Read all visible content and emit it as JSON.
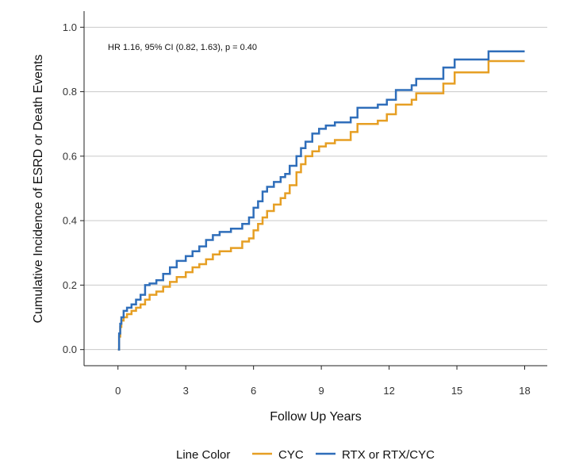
{
  "chart_data": {
    "type": "line",
    "step": true,
    "xlabel": "Follow Up Years",
    "ylabel": "Cumulative Incidence of ESRD or Death Events",
    "xlim": [
      -1.5,
      19
    ],
    "ylim": [
      -0.05,
      1.05
    ],
    "xticks": [
      0,
      3,
      6,
      9,
      12,
      15,
      18
    ],
    "yticks": [
      0.0,
      0.2,
      0.4,
      0.6,
      0.8,
      1.0
    ],
    "ytick_labels": [
      "0.0",
      "0.2",
      "0.4",
      "0.6",
      "0.8",
      "1.0"
    ],
    "grid": "horizontal",
    "annotation": "HR 1.16, 95% CI (0.82, 1.63), p = 0.40",
    "legend": {
      "title": "Line Color",
      "position": "bottom"
    },
    "series": [
      {
        "name": "CYC",
        "color": "#E69F24",
        "points": [
          [
            0,
            0
          ],
          [
            0.05,
            0.04
          ],
          [
            0.1,
            0.07
          ],
          [
            0.15,
            0.09
          ],
          [
            0.25,
            0.1
          ],
          [
            0.4,
            0.11
          ],
          [
            0.6,
            0.12
          ],
          [
            0.8,
            0.13
          ],
          [
            1.0,
            0.14
          ],
          [
            1.2,
            0.155
          ],
          [
            1.4,
            0.17
          ],
          [
            1.7,
            0.18
          ],
          [
            2.0,
            0.195
          ],
          [
            2.3,
            0.21
          ],
          [
            2.6,
            0.225
          ],
          [
            3.0,
            0.24
          ],
          [
            3.3,
            0.255
          ],
          [
            3.6,
            0.265
          ],
          [
            3.9,
            0.28
          ],
          [
            4.2,
            0.295
          ],
          [
            4.5,
            0.305
          ],
          [
            5.0,
            0.315
          ],
          [
            5.5,
            0.335
          ],
          [
            5.8,
            0.345
          ],
          [
            6.0,
            0.37
          ],
          [
            6.2,
            0.39
          ],
          [
            6.4,
            0.41
          ],
          [
            6.6,
            0.43
          ],
          [
            6.9,
            0.45
          ],
          [
            7.2,
            0.47
          ],
          [
            7.4,
            0.485
          ],
          [
            7.6,
            0.51
          ],
          [
            7.9,
            0.55
          ],
          [
            8.1,
            0.575
          ],
          [
            8.3,
            0.6
          ],
          [
            8.6,
            0.615
          ],
          [
            8.9,
            0.63
          ],
          [
            9.2,
            0.64
          ],
          [
            9.6,
            0.65
          ],
          [
            10.3,
            0.675
          ],
          [
            10.6,
            0.7
          ],
          [
            11.5,
            0.71
          ],
          [
            11.9,
            0.73
          ],
          [
            12.3,
            0.76
          ],
          [
            13.0,
            0.775
          ],
          [
            13.2,
            0.795
          ],
          [
            14.4,
            0.825
          ],
          [
            14.9,
            0.86
          ],
          [
            16.4,
            0.895
          ],
          [
            18.0,
            0.895
          ]
        ]
      },
      {
        "name": "RTX or RTX/CYC",
        "color": "#2F6EBA",
        "points": [
          [
            0,
            0
          ],
          [
            0.05,
            0.05
          ],
          [
            0.1,
            0.08
          ],
          [
            0.15,
            0.1
          ],
          [
            0.25,
            0.12
          ],
          [
            0.4,
            0.13
          ],
          [
            0.6,
            0.14
          ],
          [
            0.8,
            0.155
          ],
          [
            1.0,
            0.17
          ],
          [
            1.2,
            0.2
          ],
          [
            1.4,
            0.205
          ],
          [
            1.7,
            0.215
          ],
          [
            2.0,
            0.235
          ],
          [
            2.3,
            0.255
          ],
          [
            2.6,
            0.275
          ],
          [
            3.0,
            0.29
          ],
          [
            3.3,
            0.305
          ],
          [
            3.6,
            0.32
          ],
          [
            3.9,
            0.34
          ],
          [
            4.2,
            0.355
          ],
          [
            4.5,
            0.365
          ],
          [
            5.0,
            0.375
          ],
          [
            5.5,
            0.39
          ],
          [
            5.8,
            0.41
          ],
          [
            6.0,
            0.44
          ],
          [
            6.2,
            0.46
          ],
          [
            6.4,
            0.49
          ],
          [
            6.6,
            0.505
          ],
          [
            6.9,
            0.52
          ],
          [
            7.2,
            0.535
          ],
          [
            7.4,
            0.545
          ],
          [
            7.6,
            0.57
          ],
          [
            7.9,
            0.6
          ],
          [
            8.1,
            0.625
          ],
          [
            8.3,
            0.645
          ],
          [
            8.6,
            0.67
          ],
          [
            8.9,
            0.685
          ],
          [
            9.2,
            0.695
          ],
          [
            9.6,
            0.705
          ],
          [
            10.3,
            0.72
          ],
          [
            10.6,
            0.75
          ],
          [
            11.5,
            0.76
          ],
          [
            11.9,
            0.775
          ],
          [
            12.3,
            0.805
          ],
          [
            13.0,
            0.82
          ],
          [
            13.2,
            0.84
          ],
          [
            14.4,
            0.875
          ],
          [
            14.9,
            0.9
          ],
          [
            16.4,
            0.925
          ],
          [
            18.0,
            0.925
          ]
        ]
      }
    ]
  }
}
